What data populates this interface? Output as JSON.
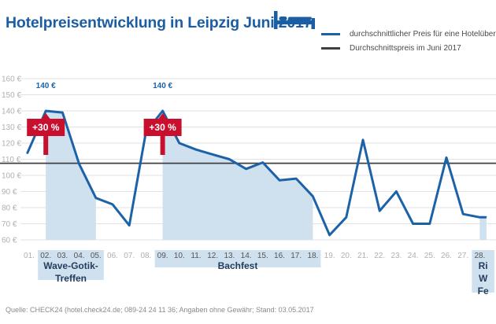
{
  "title": "Hotelpreisentwicklung in Leipzig Juni 2017",
  "icons": {
    "title_icon": "bed-icon"
  },
  "colors": {
    "title": "#1b5ea3",
    "series": "#1c62a8",
    "average": "#404040",
    "event_shade": "#cfe0ef",
    "peak_arrow": "#c8102e"
  },
  "legend": {
    "series_label": "durchschnittlicher Preis für eine Hotelüber",
    "average_label": "Durchschnittspreis im Juni 2017"
  },
  "source": "Quelle: CHECK24 (hotel.check24.de; 089-24 24 11 36; Angaben ohne Gewähr; Stand: 03.05.2017",
  "chart_data": {
    "type": "line",
    "title": "Hotelpreisentwicklung in Leipzig Juni 2017",
    "xlabel": "",
    "ylabel": "",
    "ylim": [
      60,
      160
    ],
    "y_ticks": [
      60,
      70,
      80,
      90,
      100,
      110,
      120,
      130,
      140,
      150,
      160
    ],
    "y_tick_suffix": " €",
    "x_ticks": [
      "01.",
      "02.",
      "03.",
      "04.",
      "05.",
      "06.",
      "07.",
      "08.",
      "09.",
      "10.",
      "11.",
      "12.",
      "13.",
      "14.",
      "15.",
      "16.",
      "17.",
      "18.",
      "19.",
      "20.",
      "21.",
      "22.",
      "23.",
      "24.",
      "25.",
      "26.",
      "27.",
      "28."
    ],
    "grid": "horizontal",
    "legend_position": "top-right",
    "series": [
      {
        "name": "durchschnittlicher Preis für eine Hotelüber",
        "x": [
          0.9,
          2,
          3,
          4,
          5,
          6,
          7,
          8,
          9,
          10,
          11,
          12,
          13,
          14,
          15,
          16,
          17,
          18,
          19,
          20,
          21,
          22,
          23,
          24,
          25,
          26,
          27,
          28,
          28.35
        ],
        "values": [
          114,
          140,
          139,
          107,
          86,
          82,
          69,
          127,
          140,
          120,
          116,
          113,
          110,
          104,
          108,
          97,
          98,
          87,
          63,
          74,
          122,
          78,
          90,
          70,
          70,
          111,
          76,
          74,
          74
        ]
      }
    ],
    "average": {
      "name": "Durchschnittspreis im Juni 2017",
      "value": 107.5
    },
    "peaks": [
      {
        "day": 2,
        "value": 140,
        "label": "140 €",
        "change": "+30 %"
      },
      {
        "day": 9,
        "value": 140,
        "label": "140 €",
        "change": "+30 %"
      }
    ],
    "events": [
      {
        "name": "Wave-Gotik-Treffen",
        "lines": [
          "Wave-Gotik-",
          "Treffen"
        ],
        "from_day": 2,
        "to_day": 5
      },
      {
        "name": "Bachfest",
        "lines": [
          "Bachfest"
        ],
        "from_day": 9,
        "to_day": 18
      },
      {
        "name": "Ri W Fe",
        "lines": [
          "Ri",
          "W",
          "Fe"
        ],
        "from_day": 28,
        "to_day": 28.4
      }
    ]
  }
}
